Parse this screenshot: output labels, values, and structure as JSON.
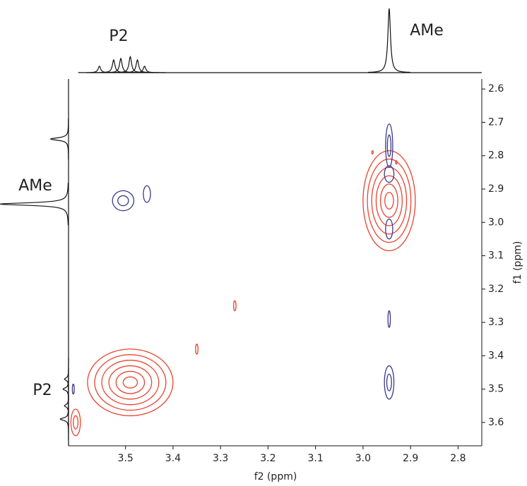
{
  "chart_data": {
    "type": "nmr2d",
    "x_label": "f2 (ppm)",
    "y_label": "f1 (ppm)",
    "xlim": [
      3.62,
      2.75
    ],
    "ylim": [
      2.57,
      3.67
    ],
    "xticks": [
      3.5,
      3.4,
      3.3,
      3.2,
      3.1,
      {
        "value": 3,
        "label": "3.0"
      },
      2.9,
      2.8
    ],
    "yticks": [
      2.6,
      2.7,
      2.8,
      2.9,
      {
        "value": 3,
        "label": "3.0"
      },
      3.1,
      3.2,
      3.3,
      3.4,
      3.5,
      3.6
    ],
    "annotations": {
      "top_p2": "P2",
      "top_ame": "AMe",
      "left_ame": "AMe",
      "left_p2": "P2"
    },
    "series": [
      {
        "color": "#e8432f",
        "x": [
          2.945,
          3.49,
          3.27,
          3.35,
          3.605,
          2.98,
          2.93
        ],
        "y": [
          2.935,
          3.48,
          3.25,
          3.38,
          3.6,
          2.79,
          2.82
        ],
        "wx": [
          0.11,
          0.18,
          0.005,
          0.005,
          0.02,
          0.003,
          0.003
        ],
        "wy": [
          0.3,
          0.2,
          0.03,
          0.03,
          0.08,
          0.01,
          0.01
        ]
      },
      {
        "color": "#3a3a8c",
        "x": [
          2.945,
          2.945,
          2.945,
          3.505,
          3.455,
          2.945,
          2.945,
          3.61
        ],
        "y": [
          2.77,
          2.855,
          3.02,
          2.935,
          2.915,
          3.29,
          3.48,
          3.5
        ],
        "wx": [
          0.015,
          0.02,
          0.015,
          0.045,
          0.015,
          0.005,
          0.02,
          0.004
        ],
        "wy": [
          0.13,
          0.05,
          0.06,
          0.06,
          0.05,
          0.05,
          0.1,
          0.03
        ]
      }
    ],
    "f2_projection": {
      "x": [
        3.555,
        3.525,
        3.51,
        3.49,
        3.475,
        3.46,
        2.945
      ],
      "values": [
        0.1,
        0.2,
        0.22,
        0.25,
        0.2,
        0.1,
        1.0
      ]
    },
    "f1_projection": {
      "y": [
        2.75,
        2.945,
        3.47,
        3.5,
        3.55,
        3.59
      ],
      "values": [
        0.26,
        1.0,
        0.06,
        0.08,
        0.06,
        0.12
      ]
    }
  }
}
